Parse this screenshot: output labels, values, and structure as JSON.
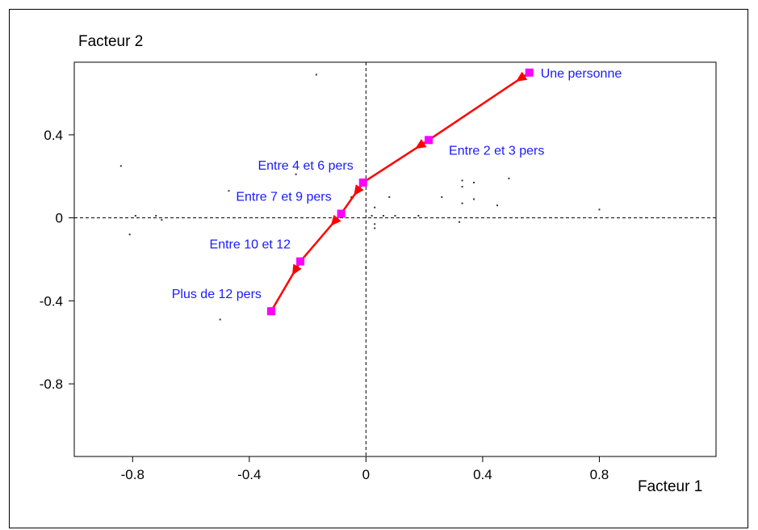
{
  "chart_data": {
    "type": "scatter",
    "xlabel": "Facteur 1",
    "ylabel": "Facteur 2",
    "xlim": [
      -1.0,
      1.2
    ],
    "ylim": [
      -1.15,
      0.75
    ],
    "x_ticks": [
      -0.8,
      -0.4,
      0,
      0.4,
      0.8
    ],
    "x_tick_labels": [
      "-0.8",
      "-0.4",
      "0",
      "0.4",
      "0.8"
    ],
    "y_ticks": [
      0.4,
      0,
      -0.4,
      -0.8
    ],
    "y_tick_labels": [
      "0.4",
      "0",
      "-0.4",
      "-0.8"
    ],
    "reference_lines": {
      "x": 0,
      "y": 0,
      "style": "dashed"
    },
    "grid": false,
    "trajectory": {
      "color": "#ff0000",
      "marker_color": "#ff00ff",
      "arrows": "toward next point",
      "points": [
        {
          "label": "Une personne",
          "x": 0.56,
          "y": 0.7,
          "label_side": "right"
        },
        {
          "label": "Entre 2 et 3 pers",
          "x": 0.215,
          "y": 0.375,
          "label_side": "below-right"
        },
        {
          "label": "Entre 4 et 6 pers",
          "x": -0.01,
          "y": 0.17,
          "label_side": "above-left"
        },
        {
          "label": "Entre 7 et 9 pers",
          "x": -0.085,
          "y": 0.02,
          "label_side": "above-left"
        },
        {
          "label": "Entre 10 et 12",
          "x": -0.225,
          "y": -0.21,
          "label_side": "above-left"
        },
        {
          "label": "Plus de 12 pers",
          "x": -0.325,
          "y": -0.45,
          "label_side": "above-left"
        }
      ]
    },
    "background_points": [
      [
        -0.17,
        0.69
      ],
      [
        -0.84,
        0.25
      ],
      [
        -0.47,
        0.13
      ],
      [
        -0.24,
        0.21
      ],
      [
        -0.79,
        0.01
      ],
      [
        -0.72,
        0.01
      ],
      [
        -0.7,
        -0.01
      ],
      [
        -0.81,
        -0.08
      ],
      [
        -0.5,
        -0.49
      ],
      [
        -0.05,
        0.1
      ],
      [
        0.03,
        0.05
      ],
      [
        0.08,
        0.1
      ],
      [
        0.02,
        0.01
      ],
      [
        0.06,
        0.01
      ],
      [
        0.1,
        0.01
      ],
      [
        0.03,
        -0.03
      ],
      [
        0.03,
        -0.05
      ],
      [
        0.18,
        0.01
      ],
      [
        0.26,
        0.1
      ],
      [
        0.33,
        0.18
      ],
      [
        0.33,
        0.15
      ],
      [
        0.37,
        0.17
      ],
      [
        0.49,
        0.19
      ],
      [
        0.33,
        0.07
      ],
      [
        0.37,
        0.09
      ],
      [
        0.45,
        0.06
      ],
      [
        0.32,
        -0.02
      ],
      [
        0.8,
        0.04
      ],
      [
        0.0,
        -0.24
      ]
    ]
  }
}
